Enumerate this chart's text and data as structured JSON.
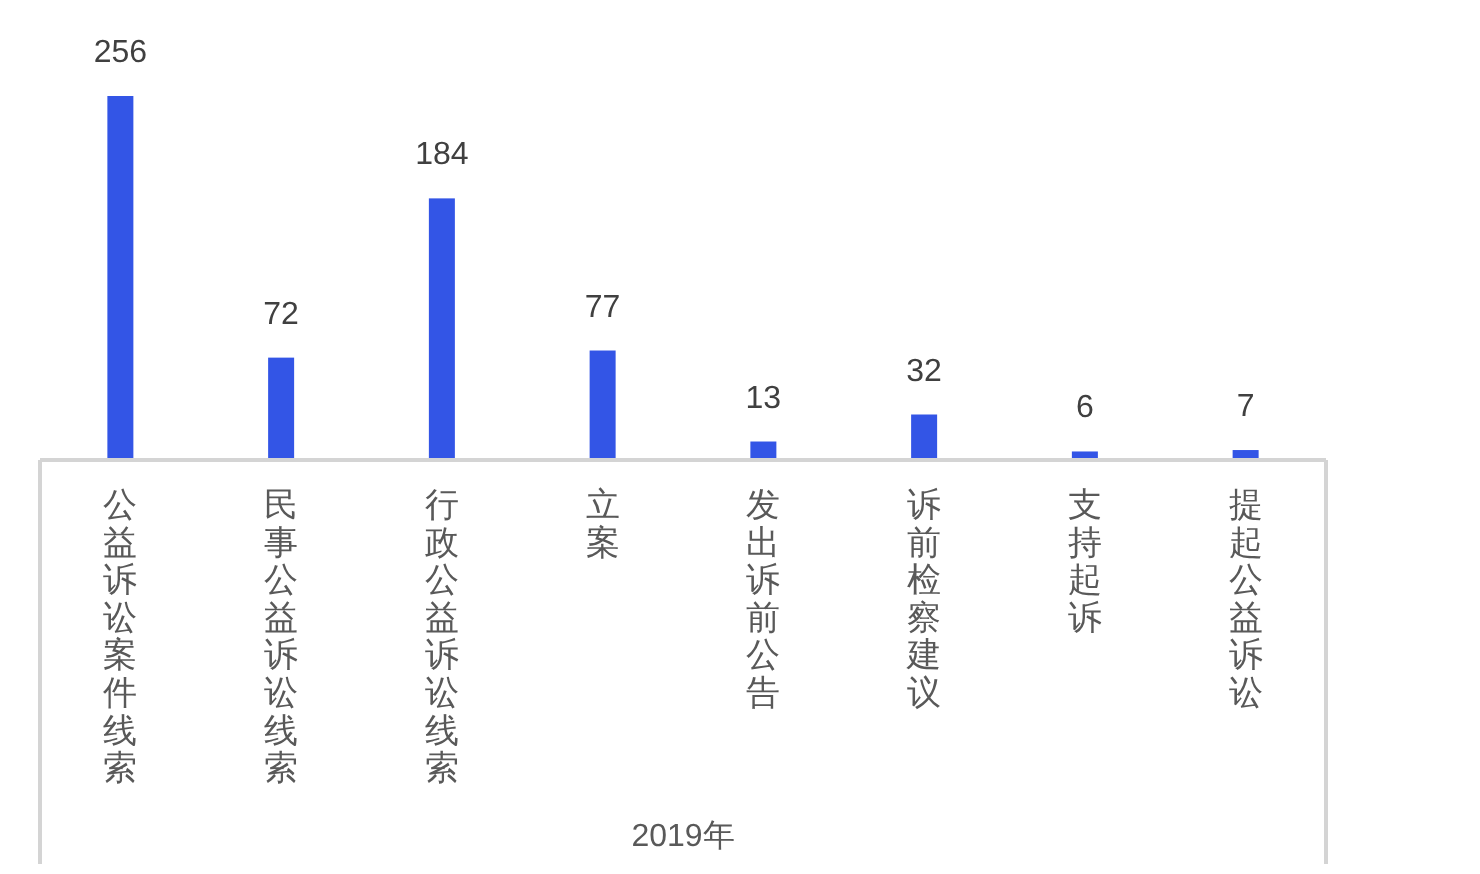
{
  "chart_data": {
    "type": "bar",
    "xlabel": "2019年",
    "categories": [
      "公益诉讼案件线索",
      "民事公益诉讼线索",
      "行政公益诉讼线索",
      "立案",
      "发出诉前公告",
      "诉前检察建议",
      "支持起诉",
      "提起公益诉讼"
    ],
    "values": [
      256,
      72,
      184,
      77,
      13,
      32,
      6,
      7
    ],
    "color": "#3355e6",
    "data_labels": true
  }
}
